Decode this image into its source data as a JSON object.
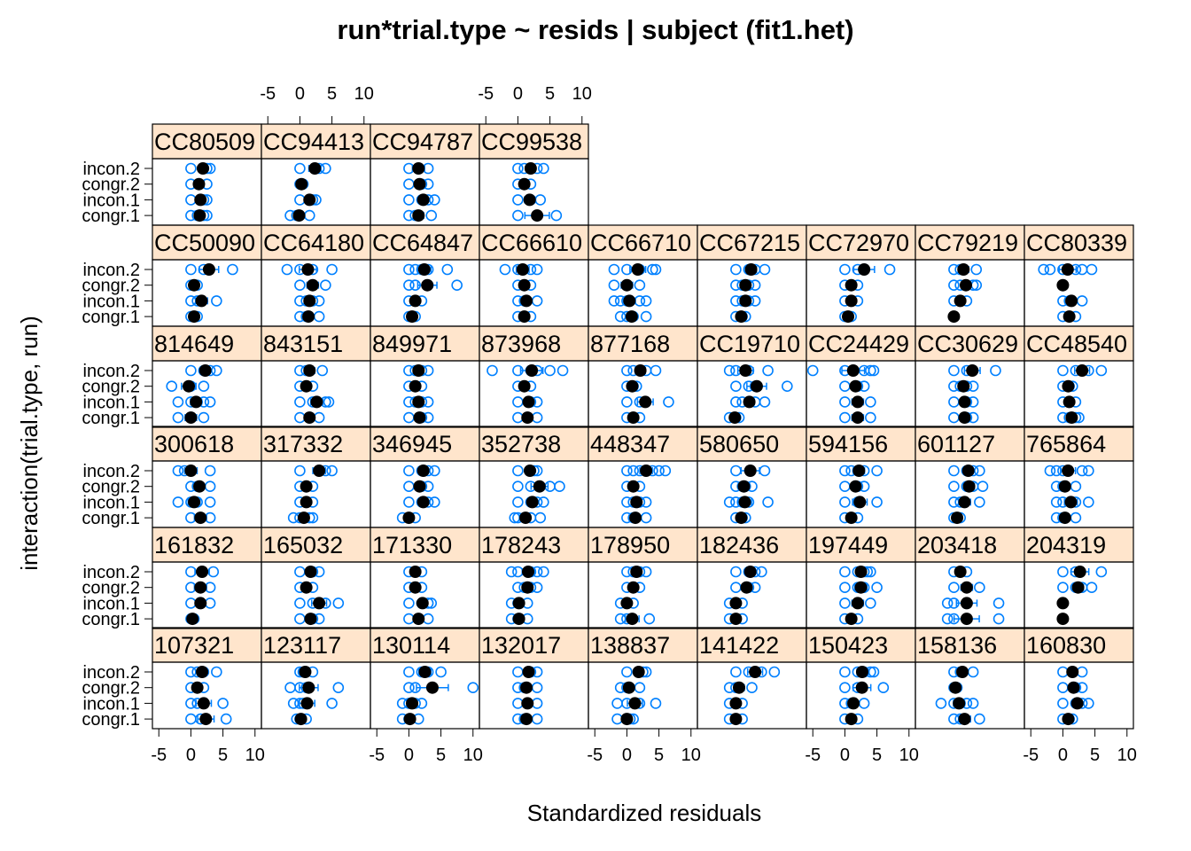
{
  "chart_data": {
    "type": "scatter",
    "title": "run*trial.type ~ resids | subject (fit1.het)",
    "xlabel": "Standardized residuals",
    "ylabel": "interaction(trial.type, run)",
    "xlim": [
      -6,
      11
    ],
    "xticks": [
      -5,
      0,
      5,
      10
    ],
    "levels": [
      "congr.1",
      "incon.1",
      "congr.2",
      "incon.2"
    ],
    "colors": {
      "points": "#0080ff",
      "mean": "#000000",
      "strip": "#ffe5cc"
    },
    "rows": [
      [
        "107321",
        "123117",
        "130114",
        "132017",
        "138837",
        "141422",
        "150423",
        "158136",
        "160830"
      ],
      [
        "161832",
        "165032",
        "171330",
        "178243",
        "178950",
        "182436",
        "197449",
        "203418",
        "204319"
      ],
      [
        "300618",
        "317332",
        "346945",
        "352738",
        "448347",
        "580650",
        "594156",
        "601127",
        "765864"
      ],
      [
        "814649",
        "843151",
        "849971",
        "873968",
        "877168",
        "CC19710",
        "CC24429",
        "CC30629",
        "CC48540"
      ],
      [
        "CC50090",
        "CC64180",
        "CC64847",
        "CC66610",
        "CC66710",
        "CC67215",
        "CC72970",
        "CC79219",
        "CC80339"
      ],
      [
        "CC80509",
        "CC94413",
        "CC94787",
        "CC99538"
      ]
    ],
    "panels": {
      "107321": {
        "congr.1": [
          0,
          1.5,
          5.5
        ],
        "incon.1": [
          0,
          1,
          5
        ],
        "congr.2": [
          0,
          2
        ],
        "incon.2": [
          0,
          1,
          2,
          4
        ]
      },
      "123117": {
        "congr.1": [
          -0.5,
          0,
          1
        ],
        "incon.1": [
          -1,
          0,
          0.5,
          5
        ],
        "congr.2": [
          -1.5,
          0,
          1,
          6
        ],
        "incon.2": [
          0,
          0.5,
          2
        ]
      },
      "130114": {
        "congr.1": [
          -1,
          0,
          1.5
        ],
        "incon.1": [
          -1,
          0,
          1,
          2
        ],
        "congr.2": [
          0,
          1,
          10
        ],
        "incon.2": [
          0,
          2,
          3,
          5
        ]
      },
      "132017": {
        "congr.1": [
          0,
          1,
          3
        ],
        "incon.1": [
          0,
          1.5,
          3
        ],
        "congr.2": [
          0,
          1,
          3
        ],
        "incon.2": [
          0,
          2,
          3
        ]
      },
      "138837": {
        "congr.1": [
          -1.5,
          0,
          0.5,
          1
        ],
        "incon.1": [
          -1.5,
          0,
          2,
          4.5
        ],
        "congr.2": [
          -1,
          0,
          2
        ],
        "incon.2": [
          0,
          2.5,
          3
        ]
      },
      "141422": {
        "congr.1": [
          -1,
          0,
          1
        ],
        "incon.1": [
          -1,
          0,
          1
        ],
        "congr.2": [
          -1,
          0,
          2.5
        ],
        "incon.2": [
          0,
          2,
          4,
          6
        ]
      },
      "150423": {
        "congr.1": [
          0,
          1,
          2
        ],
        "incon.1": [
          0,
          1,
          3
        ],
        "congr.2": [
          0,
          2,
          6
        ],
        "incon.2": [
          0,
          2,
          3,
          4,
          4.5
        ]
      },
      "158136": {
        "congr.1": [
          0,
          1,
          4
        ],
        "incon.1": [
          -2,
          0,
          1,
          2,
          3
        ],
        "congr.2": [
          0,
          0.5
        ],
        "incon.2": [
          0,
          1,
          3
        ]
      },
      "160830": {
        "congr.1": [
          0,
          1,
          1.5
        ],
        "incon.1": [
          0,
          2,
          3,
          4
        ],
        "congr.2": [
          0,
          2,
          3
        ],
        "incon.2": [
          0,
          1.5,
          3
        ]
      },
      "161832": {
        "congr.1": [
          0,
          0.5
        ],
        "incon.1": [
          0,
          1.5,
          3
        ],
        "congr.2": [
          0,
          3
        ],
        "incon.2": [
          0,
          3.5
        ]
      },
      "165032": {
        "congr.1": [
          0,
          2,
          3
        ],
        "incon.1": [
          0,
          2,
          4,
          6
        ],
        "congr.2": [
          0,
          2
        ],
        "incon.2": [
          0,
          2,
          3
        ]
      },
      "171330": {
        "congr.1": [
          0,
          1.5,
          3
        ],
        "incon.1": [
          0,
          2,
          3,
          3.5
        ],
        "congr.2": [
          0,
          2
        ],
        "incon.2": [
          0,
          2
        ]
      },
      "178243": {
        "congr.1": [
          -1,
          0,
          1.5
        ],
        "incon.1": [
          -1,
          0,
          1.5
        ],
        "congr.2": [
          0,
          1,
          2,
          3
        ],
        "incon.2": [
          -1,
          0,
          2,
          3,
          4
        ]
      },
      "178950": {
        "congr.1": [
          -1,
          0,
          3.5
        ],
        "incon.1": [
          -1,
          0,
          1
        ],
        "congr.2": [
          0,
          1,
          2
        ],
        "incon.2": [
          0,
          1,
          2,
          3
        ]
      },
      "182436": {
        "congr.1": [
          -1,
          0,
          1
        ],
        "incon.1": [
          -1,
          0,
          1
        ],
        "congr.2": [
          0,
          2,
          3
        ],
        "incon.2": [
          0,
          2,
          3,
          4
        ]
      },
      "197449": {
        "congr.1": [
          0,
          1,
          2
        ],
        "incon.1": [
          0,
          2,
          4
        ],
        "congr.2": [
          0,
          2,
          3,
          5
        ],
        "incon.2": [
          0,
          2,
          3,
          3.5,
          4
        ]
      },
      "203418": {
        "congr.1": [
          -1,
          0,
          7
        ],
        "incon.1": [
          -1,
          0,
          2,
          7
        ],
        "congr.2": [
          0,
          2,
          4
        ],
        "incon.2": [
          0,
          2
        ]
      },
      "204319": {
        "congr.1": [
          0
        ],
        "incon.1": [
          0
        ],
        "congr.2": [
          0,
          2,
          3,
          4.5
        ],
        "incon.2": [
          0,
          2,
          6
        ]
      },
      "300618": {
        "congr.1": [
          0,
          3
        ],
        "incon.1": [
          -2,
          0,
          1,
          3
        ],
        "congr.2": [
          0,
          1,
          3
        ],
        "incon.2": [
          -2,
          -1,
          0,
          3
        ]
      },
      "317332": {
        "congr.1": [
          -1,
          0,
          1.5,
          2
        ],
        "incon.1": [
          0,
          2
        ],
        "congr.2": [
          0,
          2
        ],
        "incon.2": [
          0,
          3,
          4,
          5
        ]
      },
      "346945": {
        "congr.1": [
          -1,
          0,
          1
        ],
        "incon.1": [
          0,
          2,
          3,
          4
        ],
        "congr.2": [
          0,
          2,
          3
        ],
        "incon.2": [
          0,
          2,
          3,
          4
        ]
      },
      "352738": {
        "congr.1": [
          -0.5,
          0,
          1,
          2,
          3.5
        ],
        "incon.1": [
          0,
          2,
          3,
          4
        ],
        "congr.2": [
          0,
          2,
          5,
          6.5
        ],
        "incon.2": [
          0,
          2,
          2.5,
          3
        ]
      },
      "448347": {
        "congr.1": [
          0,
          1,
          3
        ],
        "incon.1": [
          0,
          1,
          2,
          3
        ],
        "congr.2": [
          0,
          1,
          2
        ],
        "incon.2": [
          0,
          1,
          2,
          3,
          4,
          5,
          6
        ]
      },
      "580650": {
        "congr.1": [
          0,
          1,
          1.5
        ],
        "incon.1": [
          -1,
          0,
          1,
          2,
          5
        ],
        "congr.2": [
          0,
          1,
          1.5,
          2.5
        ],
        "incon.2": [
          0,
          4.5
        ]
      },
      "594156": {
        "congr.1": [
          0,
          2
        ],
        "incon.1": [
          0,
          2,
          5
        ],
        "congr.2": [
          0,
          2,
          3
        ],
        "incon.2": [
          0,
          1,
          2,
          3,
          5
        ]
      },
      "601127": {
        "congr.1": [
          0,
          1
        ],
        "incon.1": [
          0,
          1,
          4
        ],
        "congr.2": [
          0,
          2,
          3,
          4.5
        ],
        "incon.2": [
          0,
          2,
          3,
          4
        ]
      },
      "765864": {
        "congr.1": [
          -1,
          0,
          2
        ],
        "incon.1": [
          -1,
          0,
          2,
          4
        ],
        "congr.2": [
          -1,
          0,
          2
        ],
        "incon.2": [
          -2,
          -1,
          0,
          3,
          4
        ]
      },
      "814649": {
        "congr.1": [
          -2,
          0,
          2
        ],
        "incon.1": [
          -2,
          0,
          1,
          2,
          3
        ],
        "congr.2": [
          -3,
          0,
          2
        ],
        "incon.2": [
          0,
          2,
          3,
          4
        ]
      },
      "843151": {
        "congr.1": [
          0,
          1.5,
          3
        ],
        "incon.1": [
          0,
          2,
          4,
          4.5
        ],
        "congr.2": [
          0,
          2
        ],
        "incon.2": [
          0,
          1,
          3.5
        ]
      },
      "849971": {
        "congr.1": [
          0,
          2,
          3
        ],
        "incon.1": [
          0,
          1,
          2,
          3
        ],
        "congr.2": [
          0,
          2
        ],
        "incon.2": [
          0,
          1,
          2,
          3
        ]
      },
      "873968": {
        "congr.1": [
          0,
          1.5,
          3
        ],
        "incon.1": [
          0,
          2,
          3
        ],
        "congr.2": [
          0,
          2
        ],
        "incon.2": [
          -4,
          0,
          2,
          3,
          5,
          7
        ]
      },
      "877168": {
        "congr.1": [
          0,
          1,
          2
        ],
        "incon.1": [
          0,
          2,
          3,
          6.5
        ],
        "congr.2": [
          0,
          1,
          1.5
        ],
        "incon.2": [
          0,
          1,
          2,
          3,
          4.5
        ]
      },
      "CC19710": {
        "congr.1": [
          -1,
          0,
          0.5
        ],
        "incon.1": [
          0,
          1,
          2,
          3,
          4.5
        ],
        "congr.2": [
          0,
          2,
          3,
          8
        ],
        "incon.2": [
          -1,
          0,
          2,
          5
        ]
      },
      "CC24429": {
        "congr.1": [
          0,
          2,
          4
        ],
        "incon.1": [
          0,
          2,
          4
        ],
        "congr.2": [
          0,
          2,
          3
        ],
        "incon.2": [
          -5,
          0,
          3,
          4,
          4.5
        ]
      },
      "CC30629": {
        "congr.1": [
          0,
          2,
          3
        ],
        "incon.1": [
          0,
          2,
          3
        ],
        "congr.2": [
          0,
          1,
          2,
          3
        ],
        "incon.2": [
          0,
          2,
          3,
          6.5
        ]
      },
      "CC48540": {
        "congr.1": [
          0,
          1,
          2,
          2.5
        ],
        "incon.1": [
          0,
          1,
          2
        ],
        "congr.2": [
          0,
          1,
          1.5
        ],
        "incon.2": [
          0,
          2,
          4,
          6
        ]
      },
      "CC50090": {
        "congr.1": [
          0,
          1
        ],
        "incon.1": [
          0,
          1,
          4
        ],
        "congr.2": [
          0,
          1
        ],
        "incon.2": [
          0,
          2,
          6.5
        ]
      },
      "CC64180": {
        "congr.1": [
          0,
          1,
          3
        ],
        "incon.1": [
          0,
          1,
          2,
          3
        ],
        "congr.2": [
          0,
          2,
          4
        ],
        "incon.2": [
          -2,
          0,
          2,
          5
        ]
      },
      "CC64847": {
        "congr.1": [
          0,
          1
        ],
        "incon.1": [
          0,
          1,
          2
        ],
        "congr.2": [
          0,
          1,
          3,
          7.5
        ],
        "incon.2": [
          0,
          1,
          2,
          3,
          6
        ]
      },
      "CC66610": {
        "congr.1": [
          0,
          2
        ],
        "incon.1": [
          0,
          1,
          3
        ],
        "congr.2": [
          0,
          2
        ],
        "incon.2": [
          -2,
          0,
          2,
          3
        ]
      },
      "CC66710": {
        "congr.1": [
          -1,
          0,
          1,
          3
        ],
        "incon.1": [
          -2,
          -1,
          0,
          2,
          3
        ],
        "congr.2": [
          -2,
          0,
          2
        ],
        "incon.2": [
          -2,
          0,
          2,
          4,
          4.5
        ]
      },
      "CC67215": {
        "congr.1": [
          0,
          1,
          1.5
        ],
        "incon.1": [
          0,
          1,
          2,
          3
        ],
        "congr.2": [
          0,
          1,
          2,
          3
        ],
        "incon.2": [
          0,
          2,
          3,
          4.5
        ]
      },
      "CC72970": {
        "congr.1": [
          0,
          1
        ],
        "incon.1": [
          0,
          2
        ],
        "congr.2": [
          0,
          2
        ],
        "incon.2": [
          0,
          2,
          7
        ]
      },
      "CC79219": {
        "congr.1": [
          0
        ],
        "incon.1": [
          0,
          2
        ],
        "congr.2": [
          0,
          1,
          3,
          3.5
        ],
        "incon.2": [
          0,
          1,
          3.5
        ]
      },
      "CC80339": {
        "congr.1": [
          0,
          2
        ],
        "incon.1": [
          0,
          1,
          3
        ],
        "congr.2": [
          0
        ],
        "incon.2": [
          -3,
          -2,
          0,
          2,
          3,
          4.5
        ]
      },
      "CC80509": {
        "congr.1": [
          0,
          1,
          2,
          2.5
        ],
        "incon.1": [
          0,
          2,
          2.5
        ],
        "congr.2": [
          0,
          2.5
        ],
        "incon.2": [
          0,
          2,
          2.5,
          3
        ]
      },
      "CC94413": {
        "congr.1": [
          -1.5,
          -0.5,
          0,
          1.5
        ],
        "incon.1": [
          0,
          2,
          2.5
        ],
        "congr.2": [
          0,
          0.5
        ],
        "incon.2": [
          0,
          3,
          4
        ]
      },
      "CC94787": {
        "congr.1": [
          0,
          1,
          3.5
        ],
        "incon.1": [
          0,
          2,
          3,
          4
        ],
        "congr.2": [
          0,
          2,
          3
        ],
        "incon.2": [
          0,
          3
        ]
      },
      "CC99538": {
        "congr.1": [
          0,
          6
        ],
        "incon.1": [
          0,
          2,
          3.5
        ],
        "congr.2": [
          0,
          1,
          2
        ],
        "incon.2": [
          0,
          1,
          2,
          3,
          4
        ]
      }
    }
  }
}
